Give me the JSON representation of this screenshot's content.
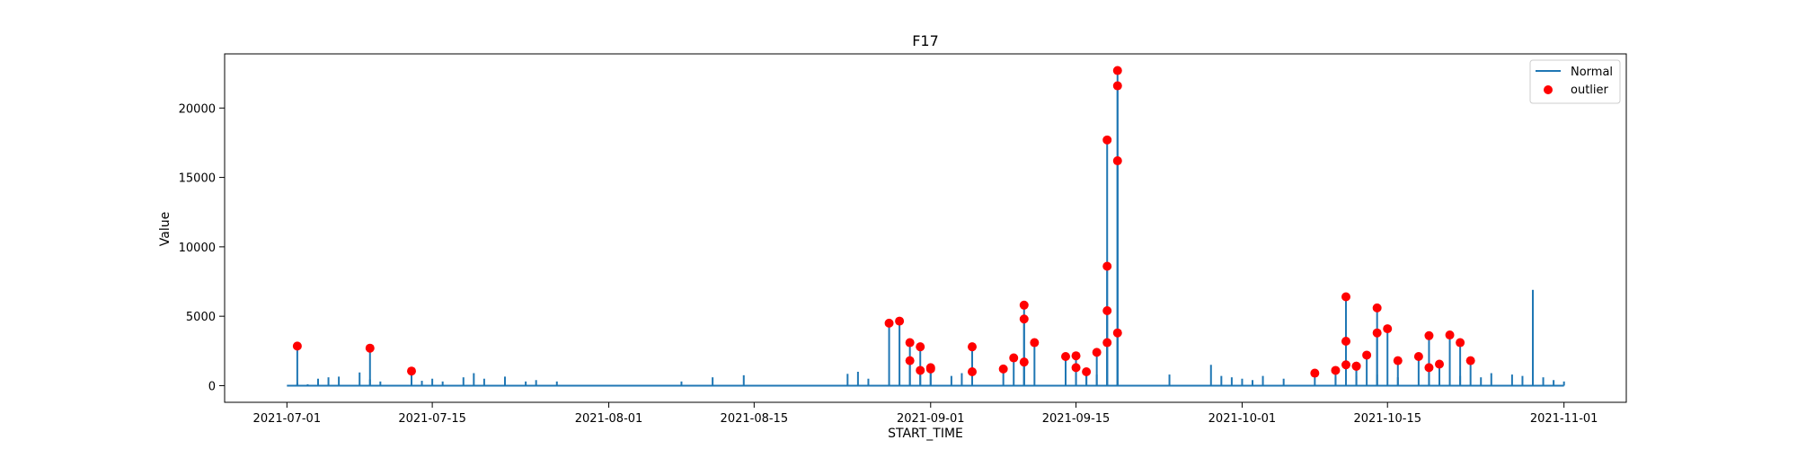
{
  "chart_data": {
    "type": "line",
    "title": "F17",
    "xlabel": "START_TIME",
    "ylabel": "Value",
    "x_ticks": [
      "2021-07-01",
      "2021-07-15",
      "2021-08-01",
      "2021-08-15",
      "2021-09-01",
      "2021-09-15",
      "2021-10-01",
      "2021-10-15",
      "2021-11-01"
    ],
    "y_ticks": [
      0,
      5000,
      10000,
      15000,
      20000
    ],
    "xlim": [
      "2021-06-25",
      "2021-11-07"
    ],
    "ylim": [
      -1200,
      23900
    ],
    "legend_position": "top-right",
    "colors": {
      "line": "#1f77b4",
      "outlier": "#ff0000"
    },
    "series": [
      {
        "name": "Normal",
        "type": "line",
        "points": [
          [
            "2021-07-01",
            0
          ],
          [
            "2021-07-02",
            200
          ],
          [
            "2021-07-03",
            100
          ],
          [
            "2021-07-04",
            500
          ],
          [
            "2021-07-05",
            600
          ],
          [
            "2021-07-06",
            650
          ],
          [
            "2021-07-08",
            950
          ],
          [
            "2021-07-09",
            450
          ],
          [
            "2021-07-10",
            300
          ],
          [
            "2021-07-13",
            400
          ],
          [
            "2021-07-14",
            350
          ],
          [
            "2021-07-15",
            500
          ],
          [
            "2021-07-16",
            300
          ],
          [
            "2021-07-18",
            600
          ],
          [
            "2021-07-19",
            900
          ],
          [
            "2021-07-20",
            500
          ],
          [
            "2021-07-22",
            650
          ],
          [
            "2021-07-24",
            300
          ],
          [
            "2021-07-25",
            400
          ],
          [
            "2021-07-27",
            300
          ],
          [
            "2021-08-08",
            300
          ],
          [
            "2021-08-11",
            600
          ],
          [
            "2021-08-14",
            750
          ],
          [
            "2021-08-24",
            850
          ],
          [
            "2021-08-25",
            1000
          ],
          [
            "2021-08-26",
            500
          ],
          [
            "2021-09-03",
            700
          ],
          [
            "2021-09-04",
            900
          ],
          [
            "2021-09-05",
            500
          ],
          [
            "2021-09-14",
            700
          ],
          [
            "2021-09-16",
            1200
          ],
          [
            "2021-09-17",
            800
          ],
          [
            "2021-09-19",
            400
          ],
          [
            "2021-09-24",
            800
          ],
          [
            "2021-09-28",
            1500
          ],
          [
            "2021-09-29",
            700
          ],
          [
            "2021-09-30",
            600
          ],
          [
            "2021-10-01",
            500
          ],
          [
            "2021-10-02",
            400
          ],
          [
            "2021-10-03",
            700
          ],
          [
            "2021-10-05",
            500
          ],
          [
            "2021-10-10",
            600
          ],
          [
            "2021-10-12",
            700
          ],
          [
            "2021-10-14",
            800
          ],
          [
            "2021-10-16",
            600
          ],
          [
            "2021-10-20",
            800
          ],
          [
            "2021-10-22",
            700
          ],
          [
            "2021-10-24",
            600
          ],
          [
            "2021-10-25",
            900
          ],
          [
            "2021-10-27",
            800
          ],
          [
            "2021-10-28",
            700
          ],
          [
            "2021-10-29",
            6900
          ],
          [
            "2021-10-30",
            600
          ],
          [
            "2021-10-31",
            400
          ],
          [
            "2021-11-01",
            300
          ]
        ]
      },
      {
        "name": "outlier",
        "type": "scatter",
        "points": [
          [
            "2021-07-02",
            2850
          ],
          [
            "2021-07-09",
            2700
          ],
          [
            "2021-07-13",
            1050
          ],
          [
            "2021-08-28",
            4500
          ],
          [
            "2021-08-29",
            4650
          ],
          [
            "2021-08-30",
            1800
          ],
          [
            "2021-08-30",
            3100
          ],
          [
            "2021-08-31",
            2800
          ],
          [
            "2021-08-31",
            1100
          ],
          [
            "2021-09-01",
            1300
          ],
          [
            "2021-09-01",
            1200
          ],
          [
            "2021-09-05",
            1000
          ],
          [
            "2021-09-05",
            2800
          ],
          [
            "2021-09-08",
            1200
          ],
          [
            "2021-09-09",
            2000
          ],
          [
            "2021-09-10",
            1700
          ],
          [
            "2021-09-10",
            4800
          ],
          [
            "2021-09-10",
            5800
          ],
          [
            "2021-09-11",
            3100
          ],
          [
            "2021-09-14",
            2100
          ],
          [
            "2021-09-15",
            2150
          ],
          [
            "2021-09-15",
            1300
          ],
          [
            "2021-09-16",
            1000
          ],
          [
            "2021-09-17",
            2400
          ],
          [
            "2021-09-18",
            8600
          ],
          [
            "2021-09-18",
            17700
          ],
          [
            "2021-09-18",
            3100
          ],
          [
            "2021-09-18",
            5400
          ],
          [
            "2021-09-19",
            3800
          ],
          [
            "2021-09-19",
            16200
          ],
          [
            "2021-09-19",
            21600
          ],
          [
            "2021-09-19",
            22700
          ],
          [
            "2021-10-08",
            900
          ],
          [
            "2021-10-10",
            1100
          ],
          [
            "2021-10-11",
            1500
          ],
          [
            "2021-10-11",
            3200
          ],
          [
            "2021-10-11",
            6400
          ],
          [
            "2021-10-12",
            1400
          ],
          [
            "2021-10-12",
            1400
          ],
          [
            "2021-10-13",
            2200
          ],
          [
            "2021-10-14",
            3800
          ],
          [
            "2021-10-14",
            5600
          ],
          [
            "2021-10-15",
            4100
          ],
          [
            "2021-10-16",
            1800
          ],
          [
            "2021-10-18",
            2100
          ],
          [
            "2021-10-19",
            3600
          ],
          [
            "2021-10-19",
            1300
          ],
          [
            "2021-10-20",
            1550
          ],
          [
            "2021-10-21",
            3650
          ],
          [
            "2021-10-22",
            3100
          ],
          [
            "2021-10-23",
            1800
          ]
        ]
      }
    ]
  }
}
